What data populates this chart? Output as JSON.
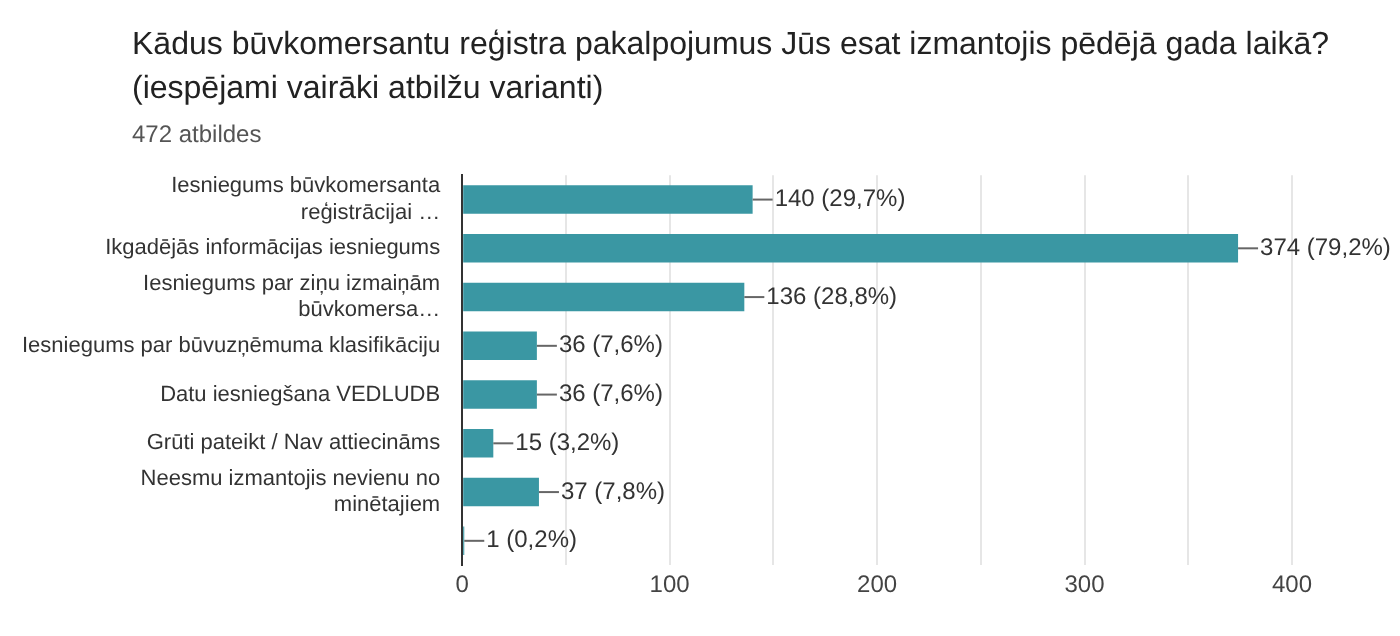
{
  "chart_data": {
    "type": "bar",
    "orientation": "horizontal",
    "title": "Kādus būvkomersantu reģistra pakalpojumus Jūs esat izmantojis  pēdējā gada laikā? (iespējami vairāki atbilžu varianti)",
    "subtitle": "472 atbildes",
    "categories": [
      "Iesniegums būvkomersanta\nreģistrācijai …",
      "Ikgadējās informācijas iesniegums",
      "Iesniegums par ziņu izmaiņām\nbūvkomersa…",
      "Iesniegums par būvuzņēmuma klasifikāciju",
      "Datu iesniegšana VEDLUDB",
      "Grūti pateikt / Nav attiecināms",
      "Neesmu izmantojis nevienu no\nminētajiem",
      null
    ],
    "values": [
      140,
      374,
      136,
      36,
      36,
      15,
      37,
      1
    ],
    "value_labels": [
      "140 (29,7%)",
      "374 (79,2%)",
      "136 (28,8%)",
      "36 (7,6%)",
      "36 (7,6%)",
      "15 (3,2%)",
      "37 (7,8%)",
      "1 (0,2%)"
    ],
    "color": "#3a97a3",
    "xlim": [
      0,
      400
    ],
    "xticks": [
      0,
      {
        "value": 50,
        "label": null
      },
      100,
      {
        "value": 150,
        "label": null
      },
      200,
      {
        "value": 250,
        "label": null
      },
      300,
      {
        "value": 350,
        "label": null
      },
      400
    ],
    "grid": "x"
  }
}
